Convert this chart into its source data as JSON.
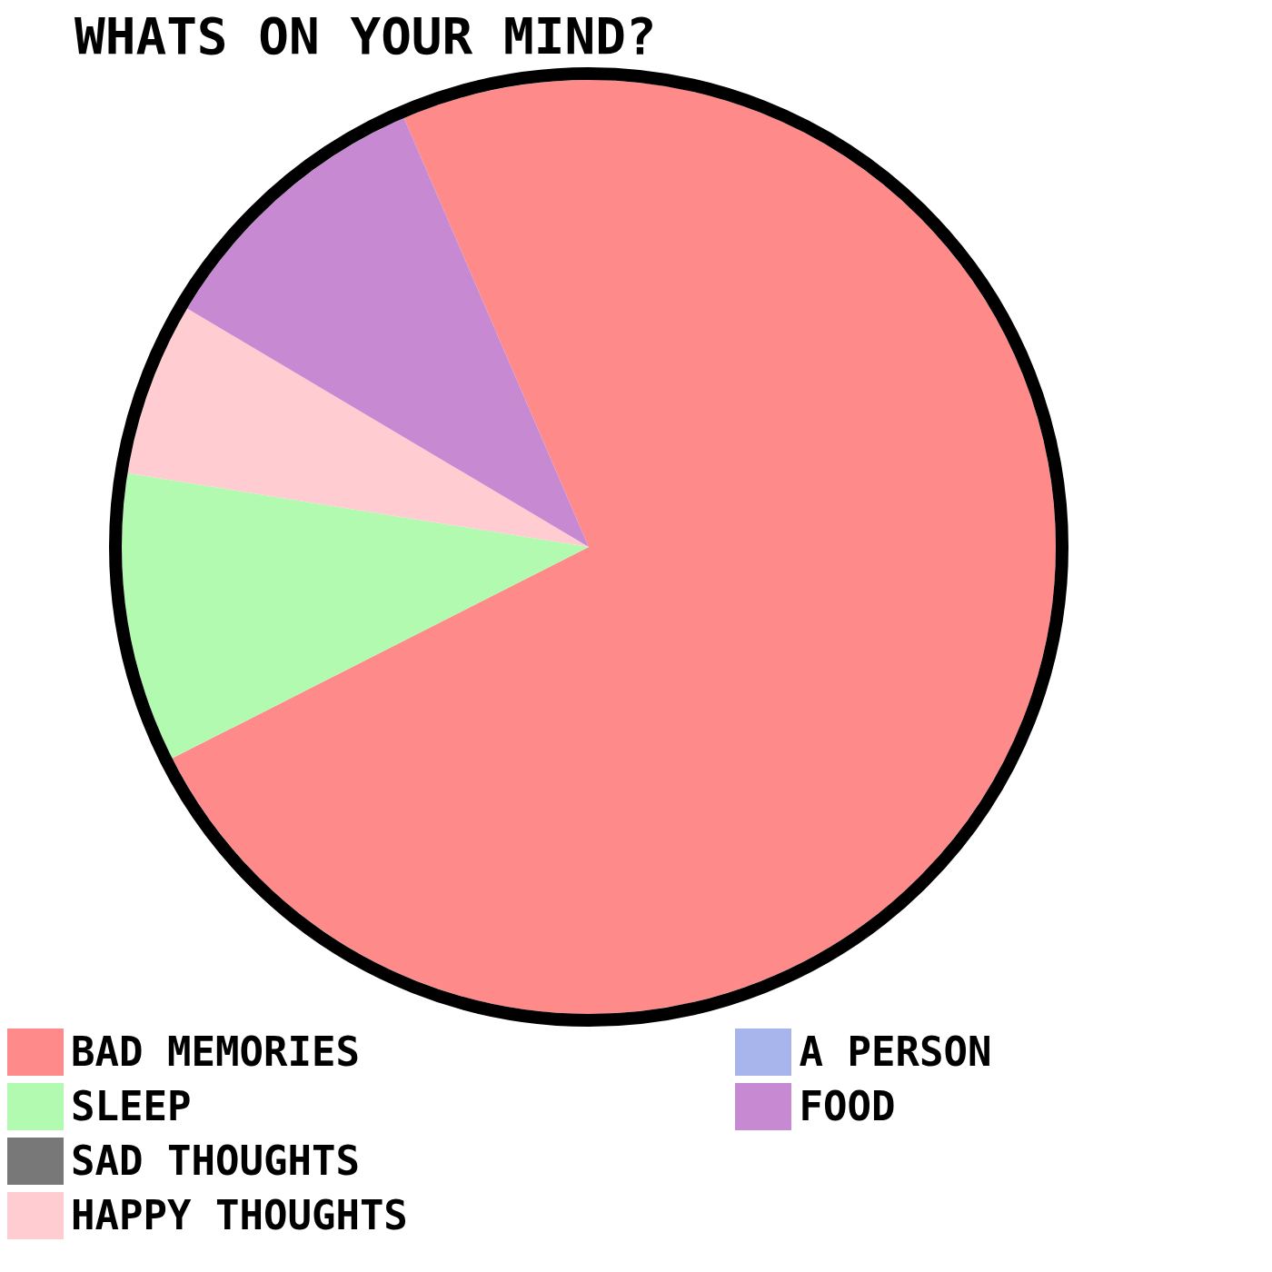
{
  "chart_data": {
    "type": "pie",
    "title": "WHATS ON YOUR MIND?",
    "categories": [
      "BAD MEMORIES",
      "SLEEP",
      "SAD THOUGHTS",
      "HAPPY THOUGHTS",
      "A PERSON",
      "FOOD"
    ],
    "values": [
      74,
      10,
      0,
      6,
      0,
      10
    ],
    "colors": [
      "#ff8a8a",
      "#b3fab1",
      "#787878",
      "#ffccd2",
      "#a8b4ec",
      "#c78ad2"
    ],
    "legend": "bottom"
  }
}
